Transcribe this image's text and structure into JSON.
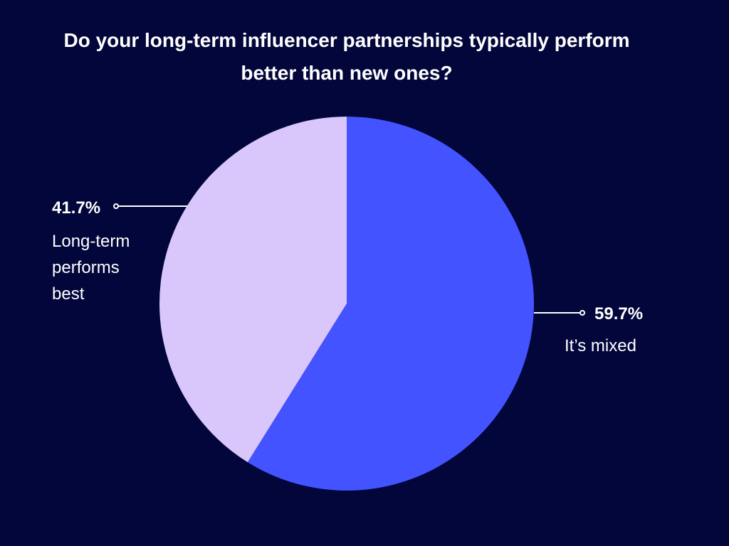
{
  "chart_data": {
    "type": "pie",
    "title": "Do your long-term influencer partnerships typically perform better than new ones?",
    "categories": [
      "It’s mixed",
      "Long-term performs best"
    ],
    "values": [
      59.7,
      41.7
    ],
    "value_labels": [
      "59.7%",
      "41.7%"
    ],
    "colors": [
      "#4353ff",
      "#d9c6fb"
    ]
  }
}
